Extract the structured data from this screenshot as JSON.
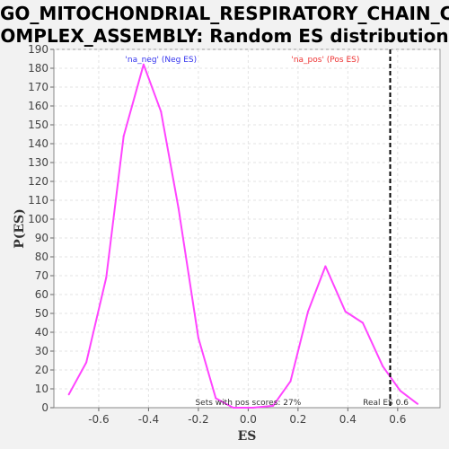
{
  "title_lines": [
    "GO_MITOCHONDRIAL_RESPIRATORY_CHAIN_C",
    "OMPLEX_ASSEMBLY: Random ES distribution"
  ],
  "chart_data": {
    "type": "line",
    "title": "GO_MITOCHONDRIAL_RESPIRATORY_CHAIN_COMPLEX_ASSEMBLY: Random ES distribution",
    "xlabel": "ES",
    "ylabel": "P(ES)",
    "xlim": [
      -0.78,
      0.77
    ],
    "ylim": [
      0,
      190
    ],
    "xticks": [
      -0.6,
      -0.4,
      -0.2,
      0.0,
      0.2,
      0.4,
      0.6
    ],
    "xtick_labels": [
      "-0.6",
      "-0.4",
      "-0.2",
      "0.0",
      "0.2",
      "0.4",
      "0.6"
    ],
    "yticks": [
      0,
      10,
      20,
      30,
      40,
      50,
      60,
      70,
      80,
      90,
      100,
      110,
      120,
      130,
      140,
      150,
      160,
      170,
      180,
      190
    ],
    "grid": true,
    "line_color": "#ff44ff",
    "series": [
      {
        "x": [
          -0.72,
          -0.65,
          -0.57,
          -0.5,
          -0.42,
          -0.35,
          -0.28,
          -0.2,
          -0.13,
          -0.06,
          0.02,
          0.1,
          0.17,
          0.24,
          0.31,
          0.39,
          0.46,
          0.54,
          0.61,
          0.68
        ],
        "y": [
          7,
          24,
          69,
          144,
          182,
          157,
          106,
          37,
          5,
          0,
          0,
          1,
          14,
          51,
          75,
          51,
          45,
          22,
          9,
          2
        ]
      }
    ],
    "real_es": {
      "x": 0.57,
      "label": "Real ES 0.6",
      "color": "#000000"
    },
    "annotations": [
      {
        "text": "'na_neg' (Neg ES)",
        "color": "#3333ee"
      },
      {
        "text": "'na_pos' (Pos ES)",
        "color": "#ee3333"
      },
      {
        "text": "Sets with pos scores: 27%",
        "color": "#333333"
      }
    ]
  }
}
